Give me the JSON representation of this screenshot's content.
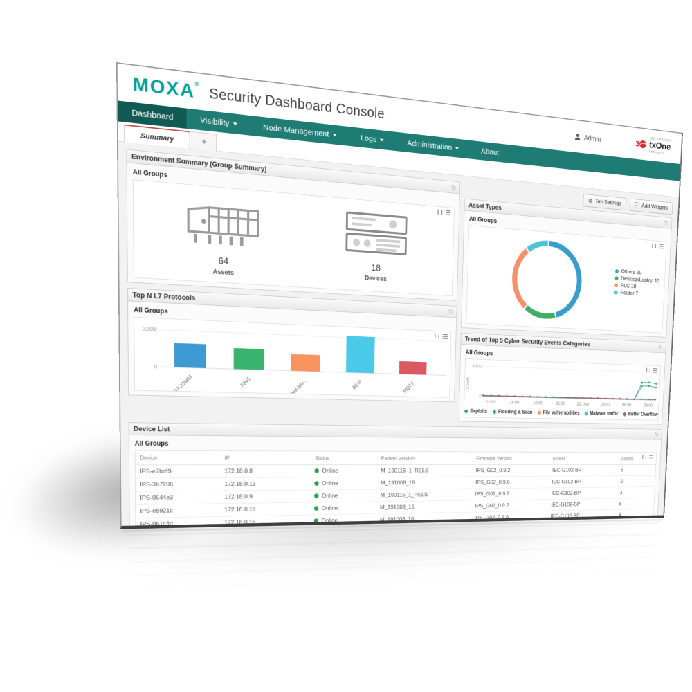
{
  "header": {
    "brand": "MOXA",
    "brand_mark": "®",
    "title": "Security Dashboard Console",
    "user": "Admin",
    "secured_by": "SECURED BY",
    "vendor": "txOne",
    "vendor_sub": "networks"
  },
  "nav": {
    "items": [
      {
        "label": "Dashboard",
        "caret": false,
        "active": true
      },
      {
        "label": "Visibility",
        "caret": true,
        "active": false
      },
      {
        "label": "Node Management",
        "caret": true,
        "active": false
      },
      {
        "label": "Logs",
        "caret": true,
        "active": false
      },
      {
        "label": "Administration",
        "caret": true,
        "active": false
      },
      {
        "label": "About",
        "caret": false,
        "active": false
      }
    ]
  },
  "tabs": {
    "summary": "Summary",
    "add": "+"
  },
  "toolbar": {
    "tab_settings": "Tab Settings",
    "add_widgets": "Add Widgets"
  },
  "widgets": {
    "environment": {
      "title": "Environment Summary (Group Summary)",
      "group": "All Groups",
      "stats": [
        {
          "value": "64",
          "label": "Assets"
        },
        {
          "value": "18",
          "label": "Devices"
        }
      ]
    },
    "asset_types": {
      "title": "Asset Types",
      "group": "All Groups"
    },
    "protocols": {
      "title": "Top N L7 Protocols",
      "group": "All Groups"
    },
    "trend": {
      "title": "Trend of Top 5 Cyber Security Events Categories",
      "group": "All Groups"
    },
    "device_list": {
      "title": "Device List",
      "group": "All Groups",
      "columns": [
        "Device",
        "IP",
        "Status",
        "Pattern Version",
        "Firmware Version",
        "Model",
        "Assets"
      ],
      "rows": [
        [
          "IPS-e7bdf9",
          "172.18.0.8",
          "Online",
          "M_190115_1_RELS",
          "IPS_G02_0.9.2",
          "IEC-G102-BP",
          "5"
        ],
        [
          "IPS-3b7206",
          "172.18.0.13",
          "Online",
          "M_191008_16",
          "IPS_G02_0.9.6",
          "IEC-G102-BP",
          "2"
        ],
        [
          "IPS-0644e3",
          "172.18.0.9",
          "Online",
          "M_190115_1_RELS",
          "IPS_G02_0.9.2",
          "IEC-G102-BP",
          "3"
        ],
        [
          "IPS-e8921c",
          "172.18.0.18",
          "Online",
          "M_191008_16",
          "IPS_G02_0.9.2",
          "IEC-G102-BP",
          "5"
        ],
        [
          "IPS-061c3d",
          "172.18.0.15",
          "Online",
          "M_191008_16",
          "IPS_G02_0.9.6",
          "IEC-G102-BP",
          "4"
        ]
      ]
    }
  },
  "chart_data": [
    {
      "type": "donut",
      "title": "Asset Types",
      "slices": [
        {
          "label": "Others",
          "value": 29,
          "color": "#3a9ccb"
        },
        {
          "label": "Desktop/Laptop",
          "value": 10,
          "color": "#3fae62"
        },
        {
          "label": "PLC",
          "value": 18,
          "color": "#f5906a"
        },
        {
          "label": "Router",
          "value": 7,
          "color": "#4ac4d6"
        }
      ],
      "legend_position": "right"
    },
    {
      "type": "bar",
      "title": "Top N L7 Protocols",
      "categories": [
        "S7COMM",
        "FINS",
        "Mitsubishi...",
        "RDP",
        "MQTT"
      ],
      "values": [
        210,
        185,
        150,
        335,
        120
      ],
      "unit": "M",
      "colors": [
        "#3d9ad2",
        "#39b46e",
        "#f6935f",
        "#4ac9e8",
        "#d95a60"
      ],
      "gridline_value": 320,
      "gridline_label": "320M",
      "baseline_label": "0",
      "ylim": [
        0,
        320
      ]
    },
    {
      "type": "line",
      "title": "Trend of Top 5 Cyber Security Events Categories",
      "ylabel": "Count",
      "ymax": 400,
      "ymax_label": "400M",
      "baseline_label": "0",
      "x_ticks": [
        {
          "i": 1,
          "label": "12:00"
        },
        {
          "i": 4,
          "label": "15:00"
        },
        {
          "i": 7,
          "label": "18:00"
        },
        {
          "i": 10,
          "label": "21:00"
        },
        {
          "i": 13,
          "label": "22. Jan"
        },
        {
          "i": 16,
          "label": "03:00"
        },
        {
          "i": 19,
          "label": "06:00"
        },
        {
          "i": 22,
          "label": "09:00"
        }
      ],
      "series": [
        {
          "name": "File vulnerabilities",
          "color": "#ef9a5c",
          "marker": "none",
          "values": [
            2,
            2,
            2,
            2,
            2,
            2,
            2,
            2,
            2,
            2,
            2,
            2,
            2,
            2,
            2,
            2,
            2,
            2,
            2,
            2,
            2,
            2,
            2,
            2
          ]
        },
        {
          "name": "Malware traffic",
          "color": "#4fc3d6",
          "marker": "none",
          "values": [
            2,
            2,
            2,
            2,
            2,
            2,
            2,
            2,
            2,
            2,
            2,
            2,
            2,
            2,
            2,
            2,
            2,
            2,
            2,
            2,
            2,
            2,
            2,
            2
          ]
        },
        {
          "name": "Flooding & Scan",
          "color": "#3ca96a",
          "marker": "dot",
          "values": [
            2,
            2,
            2,
            2,
            2,
            2,
            2,
            2,
            2,
            2,
            2,
            2,
            2,
            2,
            2,
            2,
            2,
            2,
            2,
            2,
            2,
            195,
            200,
            180
          ]
        },
        {
          "name": "Exploits",
          "color": "#29a39b",
          "marker": "dot",
          "values": [
            2,
            2,
            2,
            2,
            2,
            2,
            2,
            2,
            2,
            2,
            2,
            2,
            2,
            2,
            2,
            2,
            2,
            2,
            2,
            2,
            2,
            245,
            250,
            235
          ]
        },
        {
          "name": "Buffer Overflow",
          "color": "#b06361",
          "marker": "square",
          "values": [
            8,
            8,
            8,
            8,
            8,
            8,
            8,
            8,
            8,
            8,
            8,
            8,
            8,
            8,
            8,
            8,
            8,
            8,
            8,
            8,
            8,
            10,
            10,
            10
          ]
        }
      ],
      "legend_order": [
        "Exploits",
        "Flooding & Scan",
        "File vulnerabilities",
        "Malware traffic",
        "Buffer Overflow"
      ]
    }
  ],
  "colors": {
    "nav_teal": "#1e7c75",
    "nav_active": "#115a54",
    "brand_teal": "#00a29b",
    "tab_accent": "#bf4a3f",
    "online_green": "#2aa14b",
    "vendor_red": "#d92b2b"
  }
}
